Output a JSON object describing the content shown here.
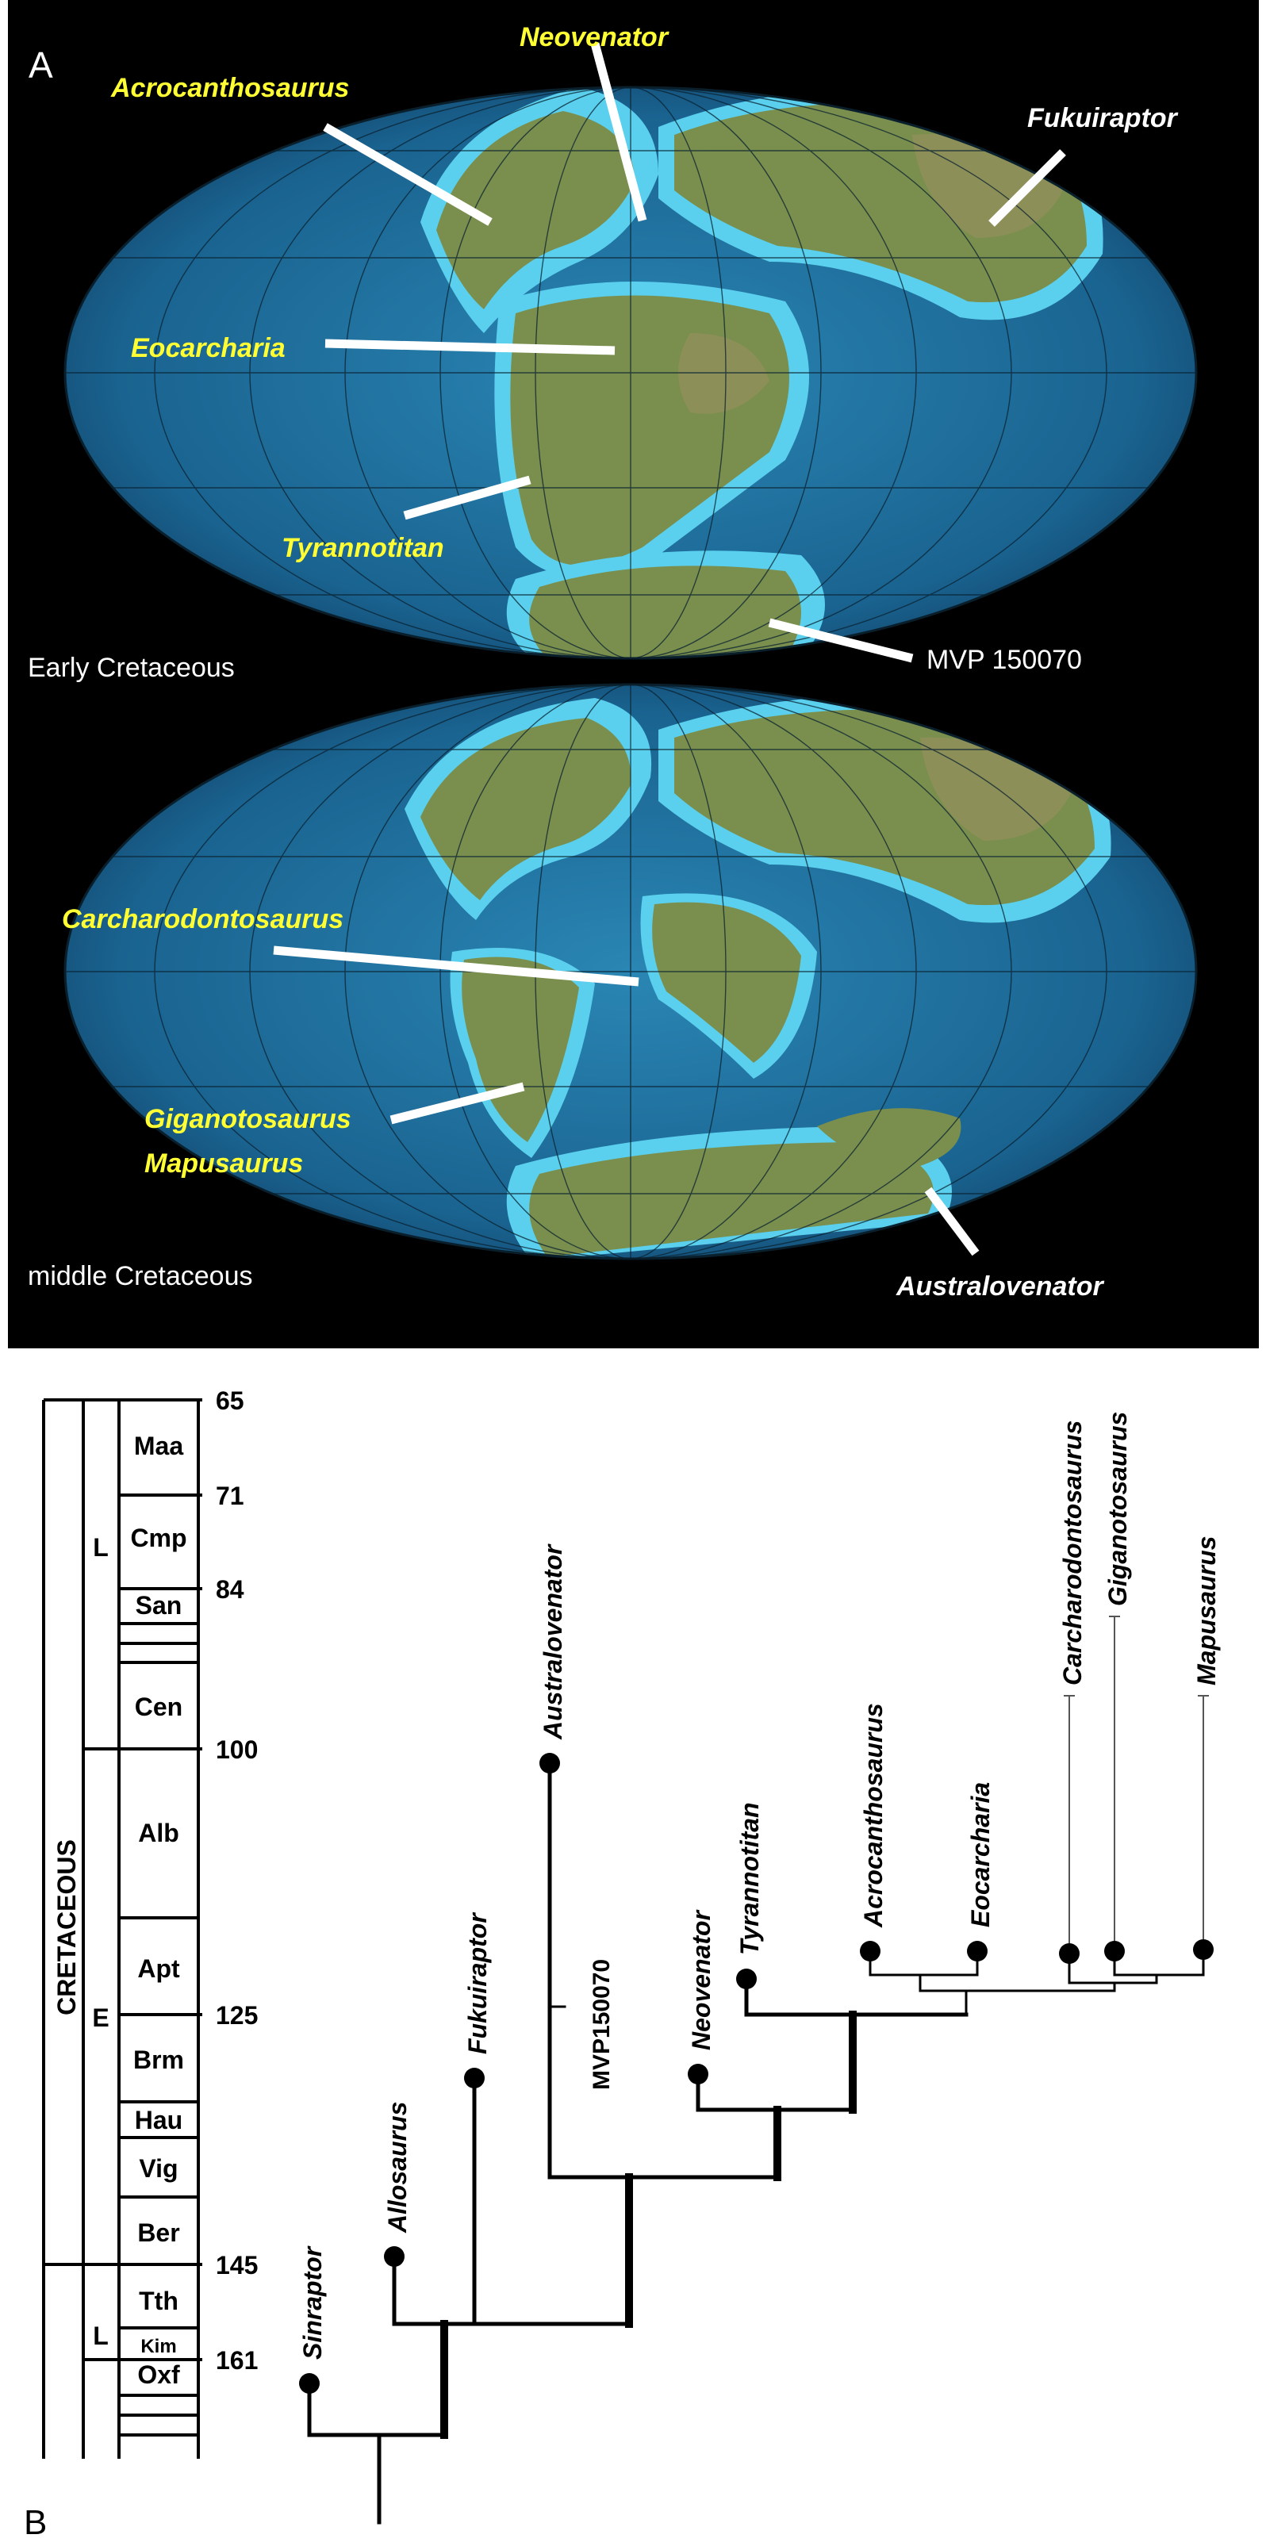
{
  "panel_a": {
    "letter": "A",
    "maps": [
      {
        "period_label": "Early Cretaceous",
        "taxa": [
          {
            "key": "acrocanthosaurus",
            "name": "Acrocanthosaurus"
          },
          {
            "key": "neovenator",
            "name": "Neovenator"
          },
          {
            "key": "fukuiraptor",
            "name": "Fukuiraptor"
          },
          {
            "key": "eocarcharia",
            "name": "Eocarcharia"
          },
          {
            "key": "tyrannotitan",
            "name": "Tyrannotitan"
          },
          {
            "key": "mvp",
            "name": "MVP 150070"
          }
        ]
      },
      {
        "period_label": "middle Cretaceous",
        "taxa": [
          {
            "key": "carcharodontosaurus",
            "name": "Carcharodontosaurus"
          },
          {
            "key": "giganotosaurus",
            "name": "Giganotosaurus"
          },
          {
            "key": "mapusaurus",
            "name": "Mapusaurus"
          },
          {
            "key": "australovenator",
            "name": "Australovenator"
          }
        ]
      }
    ],
    "colors": {
      "background": "#000000",
      "ocean": "#1c6d99",
      "shelf": "#5ad0ee",
      "land": "#7a8f4e",
      "highlighted_label": "#ffff33",
      "plain_label": "#ffffff"
    }
  },
  "panel_b": {
    "letter": "B",
    "system": "CRETACEOUS",
    "epochs": [
      "E",
      "L",
      "L"
    ],
    "stages": [
      "Maa",
      "Cmp",
      "San",
      "Cen",
      "Alb",
      "Apt",
      "Brm",
      "Hau",
      "Vig",
      "Ber",
      "Tth",
      "Kim",
      "Oxf"
    ],
    "ages_ma": [
      "65",
      "71",
      "84",
      "100",
      "125",
      "145",
      "161"
    ],
    "taxa": [
      "Sinraptor",
      "Allosaurus",
      "Fukuiraptor",
      "Australovenator",
      "Neovenator",
      "Tyrannotitan",
      "Acrocanthosaurus",
      "Eocarcharia",
      "Carcharodontosaurus",
      "Giganotosaurus",
      "Mapusaurus"
    ],
    "node_label": "MVP150070"
  }
}
